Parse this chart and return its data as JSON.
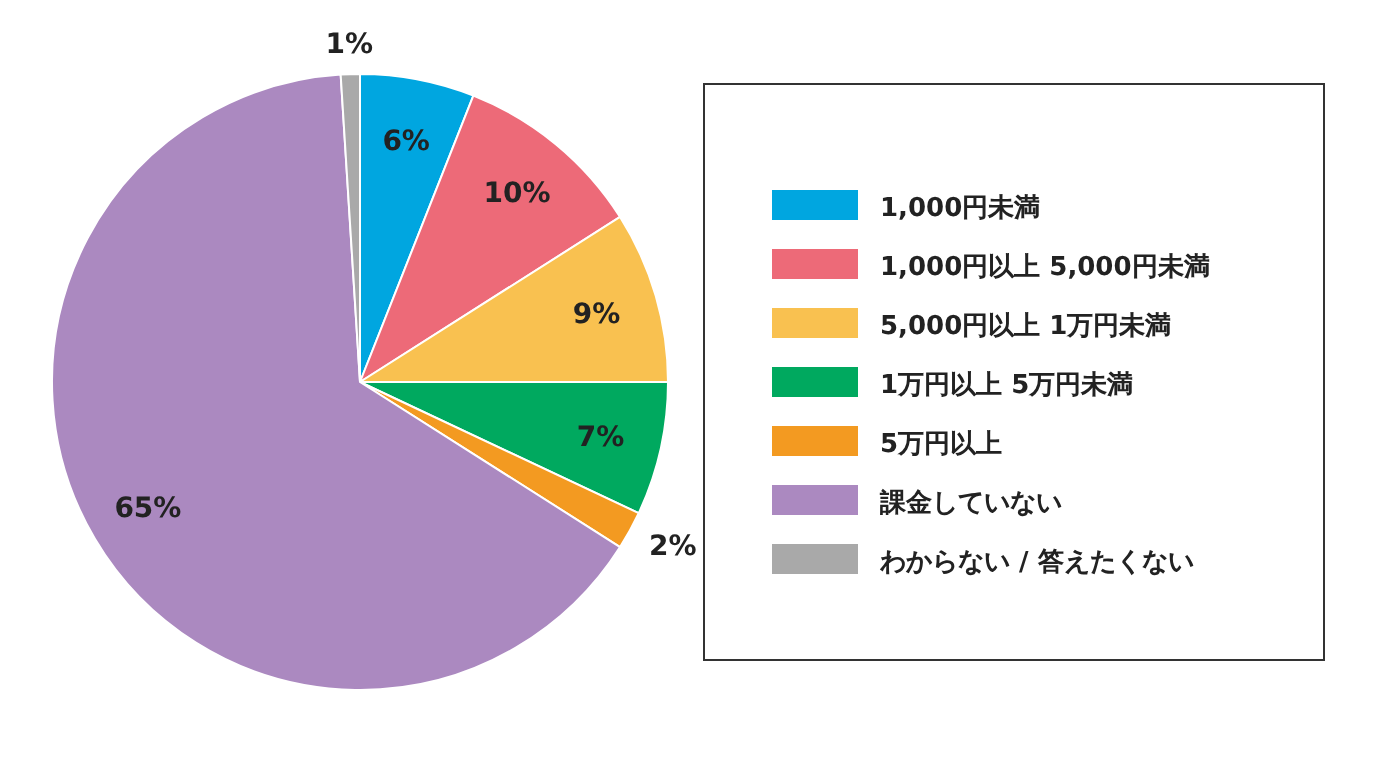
{
  "chart_data": {
    "type": "pie",
    "categories": [
      "1,000円未満",
      "1,000円以上 5,000円未満",
      "5,000円以上 1万円未満",
      "1万円以上 5万円未満",
      "5万円以上",
      "課金していない",
      "わからない / 答えたくない"
    ],
    "values": [
      6,
      10,
      9,
      7,
      2,
      65,
      1
    ],
    "colors": [
      "#00a6e0",
      "#ed6a78",
      "#f9c150",
      "#00a95f",
      "#f39a21",
      "#ab89c0",
      "#a9a9a9"
    ],
    "value_labels": [
      "6%",
      "10%",
      "9%",
      "7%",
      "2%",
      "65%",
      "1%"
    ],
    "legend": "right"
  }
}
